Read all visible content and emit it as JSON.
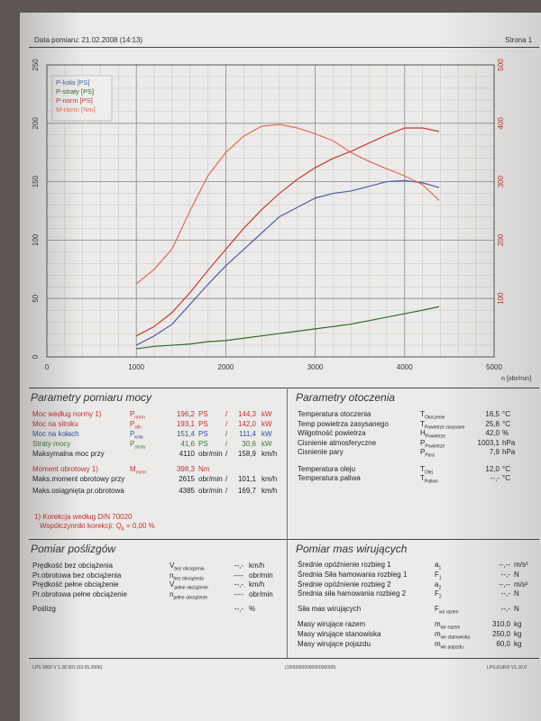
{
  "header": {
    "measure_date": "Data pomiaru: 21.02.2008 (14:13)",
    "page": "Strona 1"
  },
  "chart_data": {
    "type": "line",
    "x": [
      1000,
      1200,
      1400,
      1600,
      1800,
      2000,
      2200,
      2400,
      2600,
      2800,
      3000,
      3200,
      3400,
      3600,
      3800,
      4000,
      4200,
      4385
    ],
    "xlim": [
      0,
      5000
    ],
    "xticks": [
      "0",
      "1000",
      "2000",
      "3000",
      "4000",
      "5000"
    ],
    "xlabel": "n [obr/min]",
    "ylim_left": [
      0,
      250
    ],
    "yticks_left": [
      "0",
      "50",
      "100",
      "150",
      "200",
      "250"
    ],
    "ylim_right": [
      0,
      500
    ],
    "yticks_right": [
      "100",
      "200",
      "300",
      "400",
      "500"
    ],
    "legend": [
      "P-koła [PS]",
      "P-straty [PS]",
      "P-norm [PS]",
      "M-norm [Nm]"
    ],
    "series": [
      {
        "name": "P-koła [PS]",
        "axis": "left",
        "color": "#4a5fa8",
        "values": [
          10,
          18,
          28,
          45,
          62,
          78,
          92,
          106,
          120,
          128,
          136,
          140,
          142,
          146,
          150,
          151,
          149,
          145
        ]
      },
      {
        "name": "P-straty [PS]",
        "axis": "left",
        "color": "#2f6a2f",
        "values": [
          7,
          9,
          10,
          11,
          13,
          14,
          16,
          18,
          20,
          22,
          24,
          26,
          28,
          31,
          34,
          37,
          40,
          43
        ]
      },
      {
        "name": "P-norm [PS]",
        "axis": "left",
        "color": "#c23a3a",
        "values": [
          18,
          26,
          38,
          55,
          74,
          92,
          110,
          126,
          140,
          152,
          162,
          170,
          176,
          183,
          190,
          196,
          196,
          193
        ]
      },
      {
        "name": "M-norm [Nm]",
        "axis": "right",
        "color": "#e06a5a",
        "values": [
          125,
          150,
          185,
          250,
          310,
          350,
          378,
          395,
          398,
          392,
          382,
          370,
          350,
          335,
          322,
          310,
          295,
          268
        ]
      }
    ]
  },
  "power": {
    "title": "Parametry pomiaru mocy",
    "rows": [
      {
        "label": "Moc według normy",
        "mark": "1)",
        "sym": "P",
        "sub": "norm",
        "v1": "196,2",
        "u1": "PS",
        "sep": "/",
        "v2": "144,3",
        "u2": "kW",
        "cls": "red"
      },
      {
        "label": "Moc na silniku",
        "mark": "",
        "sym": "P",
        "sub": "siln",
        "v1": "193,1",
        "u1": "PS",
        "sep": "/",
        "v2": "142,0",
        "u2": "kW",
        "cls": "red"
      },
      {
        "label": "Moc na kołach",
        "mark": "",
        "sym": "P",
        "sub": "koła",
        "v1": "151,4",
        "u1": "PS",
        "sep": "/",
        "v2": "111,4",
        "u2": "kW",
        "cls": "blue"
      },
      {
        "label": "Straty mocy",
        "mark": "",
        "sym": "P",
        "sub": "straty",
        "v1": "41,6",
        "u1": "PS",
        "sep": "/",
        "v2": "30,6",
        "u2": "kW",
        "cls": "green"
      },
      {
        "label": "Maksymalna moc przy",
        "mark": "",
        "sym": "",
        "sub": "",
        "v1": "4110",
        "u1": "obr/min",
        "sep": "/",
        "v2": "158,9",
        "u2": "km/h",
        "cls": ""
      },
      {
        "label": "Moment obrotowy",
        "mark": "1)",
        "sym": "M",
        "sub": "norm",
        "v1": "398,3",
        "u1": "Nm",
        "sep": "",
        "v2": "",
        "u2": "",
        "cls": "red"
      },
      {
        "label": "Maks.moment obrotowy przy",
        "mark": "",
        "sym": "",
        "sub": "",
        "v1": "2615",
        "u1": "obr/min",
        "sep": "/",
        "v2": "101,1",
        "u2": "km/h",
        "cls": ""
      },
      {
        "label": "Maks.osiągnięta pr.obrotowa",
        "mark": "",
        "sym": "",
        "sub": "",
        "v1": "4385",
        "u1": "obr/min",
        "sep": "/",
        "v2": "169,7",
        "u2": "km/h",
        "cls": ""
      }
    ],
    "note1": "1) Korekcja według DIN 70020",
    "note2": "Współczynniki korekcji: Q",
    "note2_sub": "k",
    "note2_val": "=   0,00 %"
  },
  "env": {
    "title": "Parametry otoczenia",
    "rows": [
      {
        "label": "Temperatura otoczenia",
        "sym": "T",
        "sub": "Otoczenie",
        "val": "16,5",
        "unit": "°C"
      },
      {
        "label": "Temp powietrza zasysanego",
        "sym": "T",
        "sub": "Powietrze zasysane",
        "val": "25,8",
        "unit": "°C"
      },
      {
        "label": "Wilgotność powietrza",
        "sym": "H",
        "sub": "Powietrze",
        "val": "42,0",
        "unit": "%"
      },
      {
        "label": "Cisnienie atmosferyczne",
        "sym": "P",
        "sub": "Powietrze",
        "val": "1003,1",
        "unit": "hPa"
      },
      {
        "label": "Cisnienie pary",
        "sym": "P",
        "sub": "Para",
        "val": "7,9",
        "unit": "hPa"
      },
      {
        "label": "Temperatura oleju",
        "sym": "T",
        "sub": "Olej",
        "val": "12,0",
        "unit": "°C"
      },
      {
        "label": "Temperatura paliwa",
        "sym": "T",
        "sub": "Paliwo",
        "val": "--,-",
        "unit": "°C"
      }
    ]
  },
  "slip": {
    "title": "Pomiar poślizgów",
    "rows": [
      {
        "label": "Prędkość bez obciążenia",
        "sym": "V",
        "sub": "bez obciążenia",
        "val": "--,-",
        "unit": "km/h"
      },
      {
        "label": "Pr.obrotowa bez obciążenia",
        "sym": "n",
        "sub": "bez obciążenia",
        "val": "----",
        "unit": "obr/min"
      },
      {
        "label": "Prędkość pełne obciążenie",
        "sym": "V",
        "sub": "pełne obciążenie",
        "val": "--,-",
        "unit": "km/h"
      },
      {
        "label": "Pr.obrotowa pełne obciążenie",
        "sym": "n",
        "sub": "pełne obciążenie",
        "val": "----",
        "unit": "obr/min"
      },
      {
        "label": "Poślizg",
        "sym": "",
        "sub": "",
        "val": "--,-",
        "unit": "%"
      }
    ]
  },
  "mass": {
    "title": "Pomiar mas wirujących",
    "rows": [
      {
        "label": "Średnie opóźnienie rozbieg 1",
        "sym": "a",
        "sub": "1",
        "val": "--,--",
        "unit": "m/s²"
      },
      {
        "label": "Średnia Siła hamowania rozbieg 1",
        "sym": "F",
        "sub": "1",
        "val": "--,-",
        "unit": "N"
      },
      {
        "label": "Średnie opóźnienie rozbieg 2",
        "sym": "a",
        "sub": "2",
        "val": "--,--",
        "unit": "m/s²"
      },
      {
        "label": "Średnia siła hamowania rozbieg 2",
        "sym": "F",
        "sub": "2",
        "val": "--,-",
        "unit": "N"
      },
      {
        "label": "Siła mas wirujących",
        "sym": "F",
        "sub": "wir razem",
        "val": "--,-",
        "unit": "N"
      },
      {
        "label": "Masy wirujące razem",
        "sym": "m",
        "sub": "wir razem",
        "val": "310,0",
        "unit": "kg"
      },
      {
        "label": "Masy wirujące stanowiska",
        "sym": "m",
        "sub": "wir stanowiska",
        "val": "250,0",
        "unit": "kg"
      },
      {
        "label": "Masy wirujące pojazdu",
        "sym": "m",
        "sub": "wir pojazdu",
        "val": "60,0",
        "unit": "kg"
      }
    ]
  },
  "footer": {
    "left": "LPS 3000 V 1.38.001 (03.05.2006)",
    "center": "(1000000000000000000)",
    "right": "LPS-EURO V1.10.0"
  }
}
